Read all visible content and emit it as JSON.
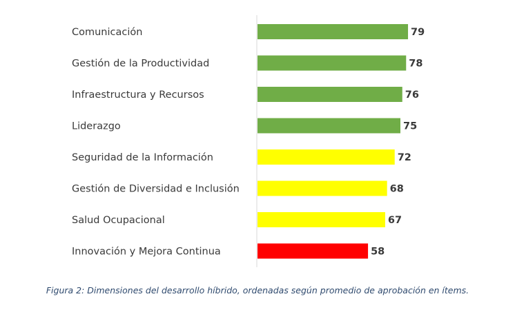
{
  "chart_data": {
    "type": "bar",
    "orientation": "horizontal",
    "categories": [
      "Comunicación",
      "Gestión de la Productividad",
      "Infraestructura y Recursos",
      "Liderazgo",
      "Seguridad de la Información",
      "Gestión de Diversidad e Inclusión",
      "Salud Ocupacional",
      "Innovación y Mejora Continua"
    ],
    "values": [
      79,
      78,
      76,
      75,
      72,
      68,
      67,
      58
    ],
    "bar_colors": [
      "#70ad47",
      "#70ad47",
      "#70ad47",
      "#70ad47",
      "#ffff00",
      "#ffff00",
      "#ffff00",
      "#ff0000"
    ],
    "axis_line_color": "#d9d9d9",
    "xlim": [
      0,
      100
    ],
    "grid": false,
    "legend": "none"
  },
  "caption": "Figura 2: Dimensiones del desarrollo híbrido, ordenadas según promedio de aprobación en ítems."
}
